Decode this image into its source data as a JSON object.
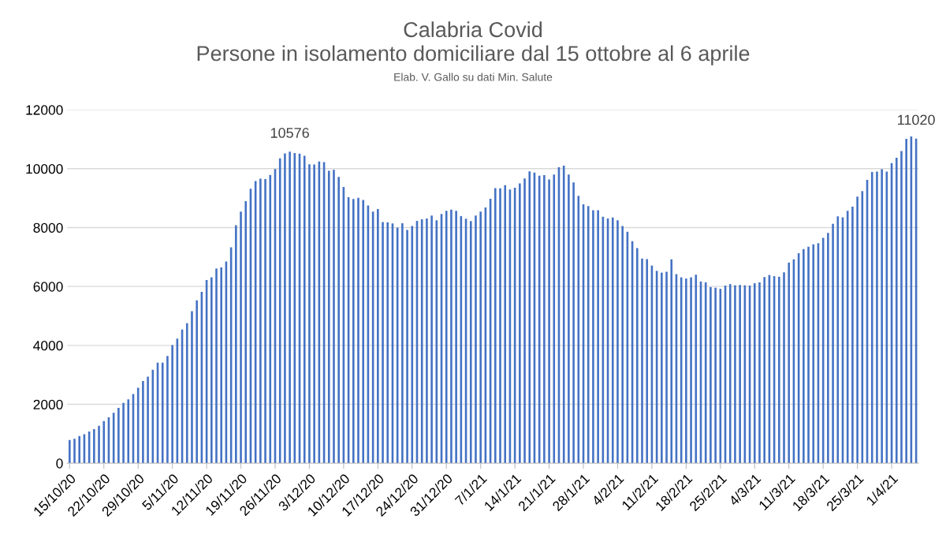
{
  "chart_data": {
    "type": "bar",
    "title": "Calabria Covid\nPersone in isolamento domiciliare dal 15 ottobre al 6 aprile",
    "subtitle": "Elab. V. Gallo su dati Min. Salute",
    "categories": [
      "15/10/20",
      null,
      null,
      null,
      null,
      null,
      null,
      "22/10/20",
      null,
      null,
      null,
      null,
      null,
      null,
      "29/10/20",
      null,
      null,
      null,
      null,
      null,
      null,
      "5/11/20",
      null,
      null,
      null,
      null,
      null,
      null,
      "12/11/20",
      null,
      null,
      null,
      null,
      null,
      null,
      "19/11/20",
      null,
      null,
      null,
      null,
      null,
      null,
      "26/11/20",
      null,
      null,
      null,
      null,
      null,
      null,
      "3/12/20",
      null,
      null,
      null,
      null,
      null,
      null,
      "10/12/20",
      null,
      null,
      null,
      null,
      null,
      null,
      "17/12/20",
      null,
      null,
      null,
      null,
      null,
      null,
      "24/12/20",
      null,
      null,
      null,
      null,
      null,
      null,
      "31/12/20",
      null,
      null,
      null,
      null,
      null,
      null,
      "7/1/21",
      null,
      null,
      null,
      null,
      null,
      null,
      "14/1/21",
      null,
      null,
      null,
      null,
      null,
      null,
      "21/1/21",
      null,
      null,
      null,
      null,
      null,
      null,
      "28/1/21",
      null,
      null,
      null,
      null,
      null,
      null,
      "4/2/21",
      null,
      null,
      null,
      null,
      null,
      null,
      "11/2/21",
      null,
      null,
      null,
      null,
      null,
      null,
      "18/2/21",
      null,
      null,
      null,
      null,
      null,
      null,
      "25/2/21",
      null,
      null,
      null,
      null,
      null,
      null,
      "4/3/21",
      null,
      null,
      null,
      null,
      null,
      null,
      "11/3/21",
      null,
      null,
      null,
      null,
      null,
      null,
      "18/3/21",
      null,
      null,
      null,
      null,
      null,
      null,
      "25/3/21",
      null,
      null,
      null,
      null,
      null,
      null,
      "1/4/21",
      null,
      null,
      null,
      null,
      null
    ],
    "values": [
      790,
      830,
      920,
      980,
      1080,
      1160,
      1270,
      1430,
      1560,
      1710,
      1880,
      2050,
      2170,
      2350,
      2560,
      2790,
      2940,
      3170,
      3410,
      3410,
      3640,
      4010,
      4230,
      4540,
      4750,
      5160,
      5530,
      5820,
      6220,
      6310,
      6610,
      6650,
      6850,
      7330,
      8080,
      8540,
      8900,
      9320,
      9580,
      9660,
      9650,
      9790,
      9990,
      10350,
      10520,
      10576,
      10530,
      10510,
      10440,
      10150,
      10140,
      10240,
      10220,
      9930,
      9960,
      9720,
      9380,
      9030,
      8970,
      9010,
      8940,
      8750,
      8540,
      8630,
      8190,
      8180,
      8140,
      8000,
      8150,
      7920,
      8050,
      8230,
      8280,
      8310,
      8410,
      8250,
      8460,
      8570,
      8610,
      8570,
      8390,
      8300,
      8220,
      8410,
      8540,
      8680,
      8980,
      9340,
      9330,
      9440,
      9290,
      9350,
      9500,
      9670,
      9910,
      9870,
      9760,
      9780,
      9630,
      9800,
      10050,
      10100,
      9800,
      9530,
      9080,
      8790,
      8730,
      8590,
      8590,
      8370,
      8310,
      8340,
      8250,
      8050,
      7860,
      7540,
      7300,
      6950,
      6930,
      6710,
      6530,
      6470,
      6500,
      6920,
      6420,
      6310,
      6270,
      6310,
      6400,
      6170,
      6140,
      5980,
      5960,
      5920,
      6030,
      6080,
      6040,
      6050,
      6040,
      6030,
      6110,
      6140,
      6320,
      6390,
      6350,
      6330,
      6480,
      6810,
      6920,
      7130,
      7270,
      7350,
      7430,
      7470,
      7650,
      7820,
      8130,
      8380,
      8350,
      8570,
      8710,
      9050,
      9240,
      9620,
      9890,
      9900,
      9980,
      9900,
      10190,
      10370,
      10600,
      11010,
      11090,
      11020
    ],
    "value_labels": [
      null,
      null,
      null,
      null,
      null,
      null,
      null,
      null,
      null,
      null,
      null,
      null,
      null,
      null,
      null,
      null,
      null,
      null,
      null,
      null,
      null,
      null,
      null,
      null,
      null,
      null,
      null,
      null,
      null,
      null,
      null,
      null,
      null,
      null,
      null,
      null,
      null,
      null,
      null,
      null,
      null,
      null,
      null,
      null,
      null,
      "10576",
      null,
      null,
      null,
      null,
      null,
      null,
      null,
      null,
      null,
      null,
      null,
      null,
      null,
      null,
      null,
      null,
      null,
      null,
      null,
      null,
      null,
      null,
      null,
      null,
      null,
      null,
      null,
      null,
      null,
      null,
      null,
      null,
      null,
      null,
      null,
      null,
      null,
      null,
      null,
      null,
      null,
      null,
      null,
      null,
      null,
      null,
      null,
      null,
      null,
      null,
      null,
      null,
      null,
      null,
      null,
      null,
      null,
      null,
      null,
      null,
      null,
      null,
      null,
      null,
      null,
      null,
      null,
      null,
      null,
      null,
      null,
      null,
      null,
      null,
      null,
      null,
      null,
      null,
      null,
      null,
      null,
      null,
      null,
      null,
      null,
      null,
      null,
      null,
      null,
      null,
      null,
      null,
      null,
      null,
      null,
      null,
      null,
      null,
      null,
      null,
      null,
      null,
      null,
      null,
      null,
      null,
      null,
      null,
      null,
      null,
      null,
      null,
      null,
      null,
      null,
      null,
      null,
      null,
      null,
      null,
      null,
      null,
      null,
      null,
      null,
      null,
      null,
      "11020"
    ],
    "color": "#4472c4",
    "ylim": [
      0,
      12000
    ],
    "yticks": [
      0,
      2000,
      4000,
      6000,
      8000,
      10000,
      12000
    ],
    "grid": "y"
  }
}
